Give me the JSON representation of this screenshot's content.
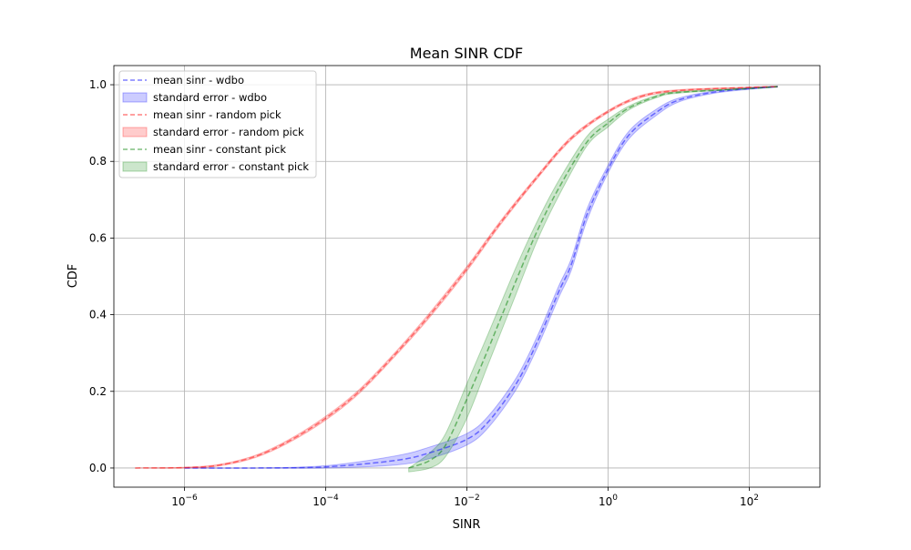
{
  "chart_data": {
    "type": "line",
    "title": "Mean SINR CDF",
    "xlabel": "SINR",
    "ylabel": "CDF",
    "xscale": "log",
    "xlim": [
      1e-07,
      1000
    ],
    "ylim": [
      -0.05,
      1.05
    ],
    "grid": true,
    "legend_position": "top-left",
    "xticks": [
      {
        "value": 1e-06,
        "base": "10",
        "exp": "−6"
      },
      {
        "value": 0.0001,
        "base": "10",
        "exp": "−4"
      },
      {
        "value": 0.01,
        "base": "10",
        "exp": "−2"
      },
      {
        "value": 1,
        "base": "10",
        "exp": "0"
      },
      {
        "value": 100,
        "base": "10",
        "exp": "2"
      }
    ],
    "yticks": [
      {
        "value": 0.0,
        "label": "0.0"
      },
      {
        "value": 0.2,
        "label": "0.2"
      },
      {
        "value": 0.4,
        "label": "0.4"
      },
      {
        "value": 0.6,
        "label": "0.6"
      },
      {
        "value": 0.8,
        "label": "0.8"
      },
      {
        "value": 1.0,
        "label": "1.0"
      }
    ],
    "series": [
      {
        "name": "mean sinr - wdbo",
        "band_name": "standard error - wdbo",
        "color": "#0000ff",
        "x": [
          1e-06,
          1e-05,
          0.0001,
          0.001,
          0.003,
          0.01,
          0.02,
          0.05,
          0.1,
          0.2,
          0.3,
          0.5,
          1,
          2,
          5,
          10,
          30,
          100,
          250
        ],
        "y": [
          0.0,
          0.0,
          0.003,
          0.02,
          0.04,
          0.075,
          0.12,
          0.22,
          0.33,
          0.46,
          0.53,
          0.66,
          0.78,
          0.87,
          0.93,
          0.96,
          0.98,
          0.99,
          0.995
        ],
        "lower": [
          0.0,
          0.0,
          0.0,
          0.008,
          0.025,
          0.06,
          0.105,
          0.205,
          0.315,
          0.445,
          0.515,
          0.645,
          0.77,
          0.86,
          0.922,
          0.955,
          0.977,
          0.988,
          0.994
        ],
        "upper": [
          0.0,
          0.0,
          0.006,
          0.032,
          0.055,
          0.09,
          0.135,
          0.235,
          0.345,
          0.475,
          0.545,
          0.675,
          0.79,
          0.88,
          0.938,
          0.965,
          0.983,
          0.992,
          0.996
        ]
      },
      {
        "name": "mean sinr - random pick",
        "band_name": "standard error - random pick",
        "color": "#ff0000",
        "x": [
          2e-07,
          1e-06,
          3e-06,
          1e-05,
          3e-05,
          0.0001,
          0.0003,
          0.001,
          0.003,
          0.01,
          0.03,
          0.1,
          0.3,
          1,
          3,
          10,
          100,
          250
        ],
        "y": [
          0.0,
          0.001,
          0.007,
          0.03,
          0.07,
          0.13,
          0.2,
          0.3,
          0.4,
          0.52,
          0.64,
          0.76,
          0.86,
          0.93,
          0.97,
          0.985,
          0.993,
          0.995
        ],
        "lower": [
          0.0,
          0.0,
          0.005,
          0.027,
          0.066,
          0.125,
          0.195,
          0.295,
          0.394,
          0.514,
          0.635,
          0.756,
          0.856,
          0.927,
          0.967,
          0.983,
          0.992,
          0.994
        ],
        "upper": [
          0.0,
          0.002,
          0.009,
          0.033,
          0.074,
          0.135,
          0.205,
          0.305,
          0.406,
          0.526,
          0.645,
          0.764,
          0.864,
          0.933,
          0.973,
          0.987,
          0.994,
          0.996
        ]
      },
      {
        "name": "mean sinr - constant pick",
        "band_name": "standard error - constant pick",
        "color": "#008000",
        "x": [
          0.0015,
          0.003,
          0.005,
          0.01,
          0.02,
          0.05,
          0.1,
          0.2,
          0.5,
          1,
          2,
          5,
          10,
          100,
          250
        ],
        "y": [
          0.0,
          0.02,
          0.06,
          0.18,
          0.31,
          0.49,
          0.62,
          0.73,
          0.85,
          0.9,
          0.94,
          0.97,
          0.98,
          0.99,
          0.995
        ],
        "lower": [
          -0.01,
          0.0,
          0.03,
          0.13,
          0.27,
          0.455,
          0.595,
          0.71,
          0.84,
          0.89,
          0.935,
          0.967,
          0.978,
          0.99,
          0.994
        ],
        "upper": [
          0.0,
          0.04,
          0.09,
          0.22,
          0.35,
          0.525,
          0.645,
          0.75,
          0.865,
          0.91,
          0.945,
          0.973,
          0.982,
          0.991,
          0.996
        ]
      }
    ]
  }
}
